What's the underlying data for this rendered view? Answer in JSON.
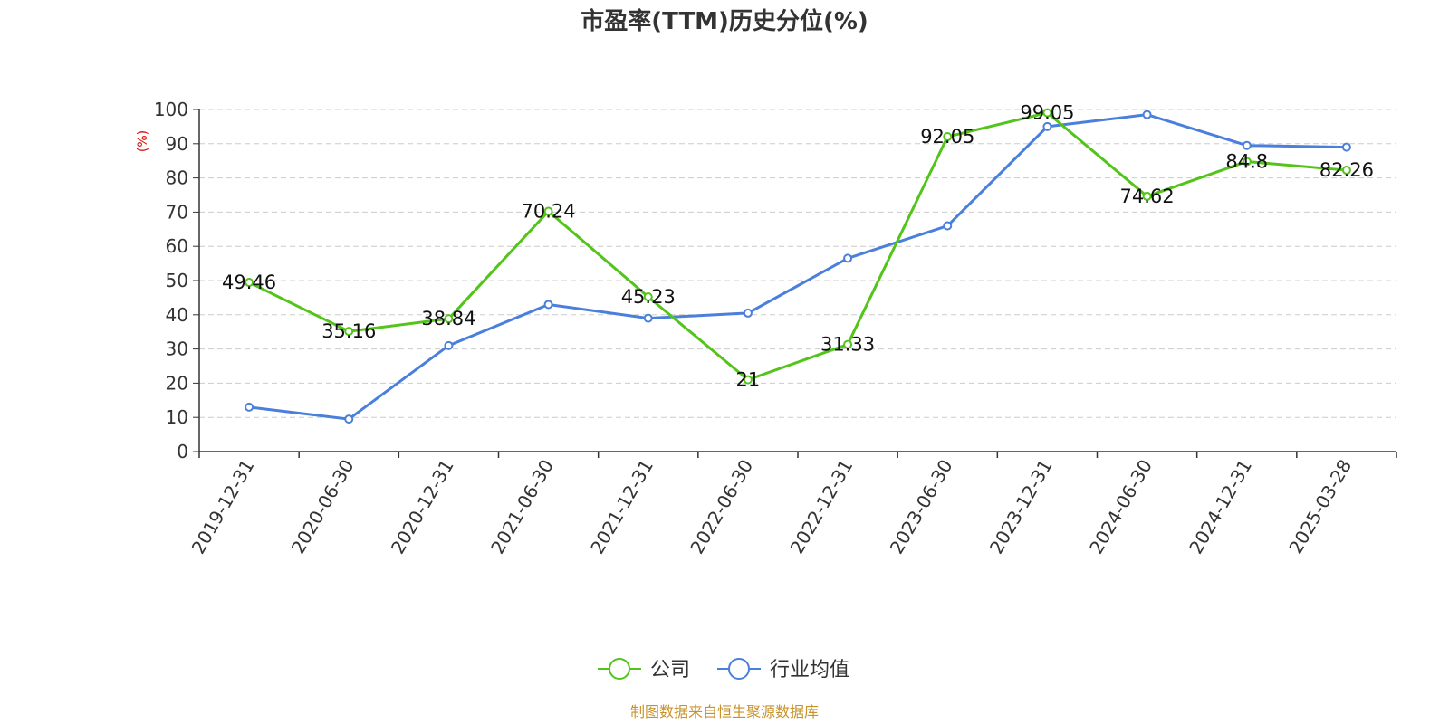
{
  "chart_data": {
    "type": "line",
    "title": "市盈率(TTM)历史分位(%)",
    "ylabel": "(%)",
    "ylim": [
      0,
      100
    ],
    "yticks": [
      0,
      10,
      20,
      30,
      40,
      50,
      60,
      70,
      80,
      90,
      100
    ],
    "categories": [
      "2019-12-31",
      "2020-06-30",
      "2020-12-31",
      "2021-06-30",
      "2021-12-31",
      "2022-06-30",
      "2022-12-31",
      "2023-06-30",
      "2023-12-31",
      "2024-06-30",
      "2024-12-31",
      "2025-03-28"
    ],
    "series": [
      {
        "name": "公司",
        "color": "#52c41a",
        "values": [
          49.46,
          35.16,
          38.84,
          70.24,
          45.23,
          21,
          31.33,
          92.05,
          99.05,
          74.62,
          84.8,
          82.26
        ],
        "labels": [
          "49.46",
          "35.16",
          "38.84",
          "70.24",
          "45.23",
          "21",
          "31.33",
          "92.05",
          "99.05",
          "74.62",
          "84.8",
          "82.26"
        ]
      },
      {
        "name": "行业均值",
        "color": "#4a7fdc",
        "values": [
          13,
          9.5,
          31,
          43,
          39,
          40.5,
          56.5,
          66,
          95,
          98.5,
          89.5,
          89
        ]
      }
    ],
    "grid": "horizontal-dashed",
    "legend_position": "bottom-center",
    "colors": {
      "axis": "#333333",
      "grid": "#cccccc",
      "ylabel": "#e00000",
      "source": "#c8922a"
    }
  },
  "source_text": "制图数据来自恒生聚源数据库"
}
